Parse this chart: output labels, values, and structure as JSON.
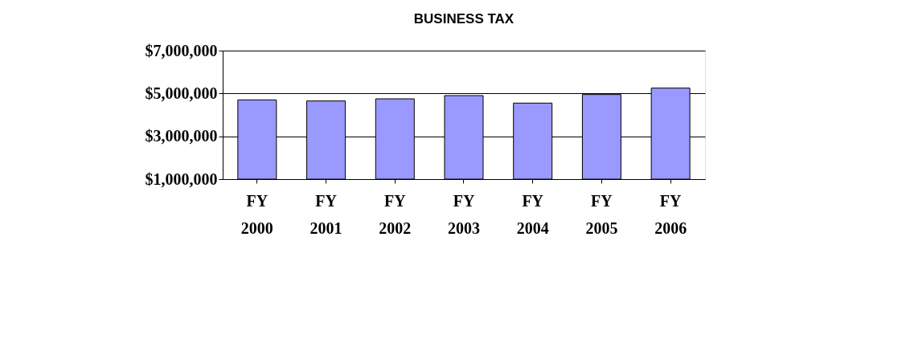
{
  "chart_data": {
    "type": "bar",
    "title": "BUSINESS TAX",
    "categories": [
      "FY 2000",
      "FY 2001",
      "FY 2002",
      "FY 2003",
      "FY 2004",
      "FY 2005",
      "FY 2006"
    ],
    "series": [
      {
        "color": "#9999ff",
        "values": [
          4700000,
          4650000,
          4750000,
          4900000,
          4550000,
          4950000,
          5250000
        ]
      }
    ],
    "ylim": [
      1000000,
      7000000
    ],
    "yticks": [
      {
        "value": 1000000,
        "label": "$1,000,000"
      },
      {
        "value": 3000000,
        "label": "$3,000,000"
      },
      {
        "value": 5000000,
        "label": "$5,000,000"
      },
      {
        "value": 7000000,
        "label": "$7,000,000"
      }
    ],
    "grid": "y"
  }
}
